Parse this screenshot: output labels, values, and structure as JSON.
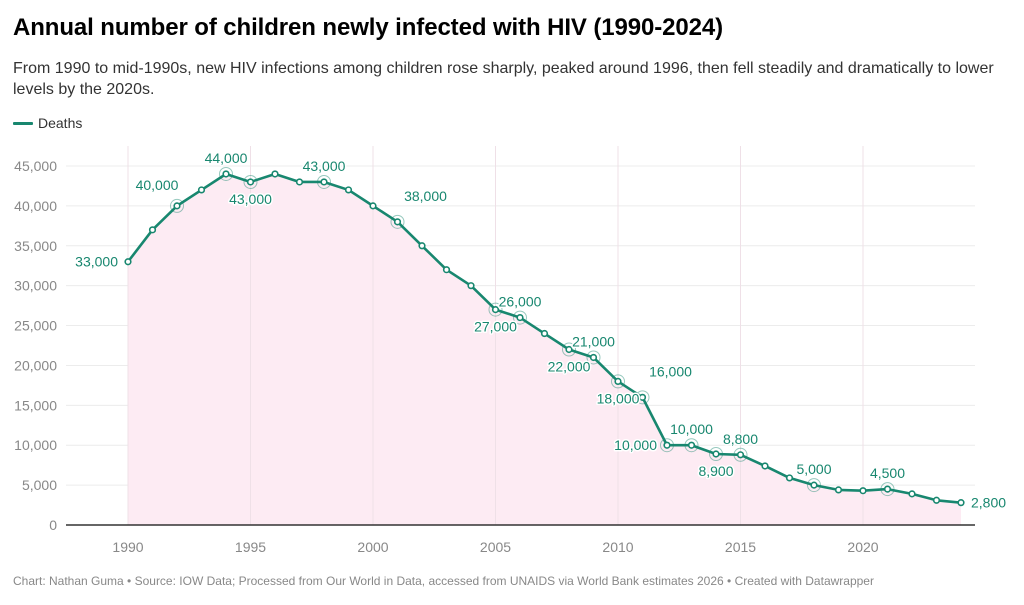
{
  "header": {
    "title": "Annual number of children newly infected with HIV (1990-2024)",
    "subtitle": "From 1990 to mid-1990s, new HIV infections among children rose sharply, peaked around 1996, then fell steadily and dramatically to lower levels by the 2020s."
  },
  "legend": {
    "label": "Deaths",
    "color": "#18876f"
  },
  "footer": {
    "text": "Chart: Nathan Guma  • Source: IOW Data; Processed from Our World in Data, accessed from UNAIDS via World Bank estimates 2026 • Created with Datawrapper"
  },
  "colors": {
    "line": "#18876f",
    "area": "#fdebf3",
    "grid": "#ececec",
    "axis": "#333333"
  },
  "chart_data": {
    "type": "area",
    "title": "Annual number of children newly infected with HIV (1990-2024)",
    "xlabel": "",
    "ylabel": "",
    "xlim": [
      1988,
      2025
    ],
    "ylim": [
      0,
      45000
    ],
    "grid": true,
    "legend_position": "top-left",
    "x_ticks": [
      1990,
      1995,
      2000,
      2005,
      2010,
      2015,
      2020
    ],
    "y_ticks": [
      0,
      5000,
      10000,
      15000,
      20000,
      25000,
      30000,
      35000,
      40000,
      45000
    ],
    "y_tick_labels": [
      "0",
      "5,000",
      "10,000",
      "15,000",
      "20,000",
      "25,000",
      "30,000",
      "35,000",
      "40,000",
      "45,000"
    ],
    "series": [
      {
        "name": "Deaths",
        "x": [
          1990,
          1991,
          1992,
          1993,
          1994,
          1995,
          1996,
          1997,
          1998,
          1999,
          2000,
          2001,
          2002,
          2003,
          2004,
          2005,
          2006,
          2007,
          2008,
          2009,
          2010,
          2011,
          2012,
          2013,
          2014,
          2015,
          2016,
          2017,
          2018,
          2019,
          2020,
          2021,
          2022,
          2023,
          2024
        ],
        "values": [
          33000,
          37000,
          40000,
          42000,
          44000,
          43000,
          44000,
          43000,
          43000,
          42000,
          40000,
          38000,
          35000,
          32000,
          30000,
          27000,
          26000,
          24000,
          22000,
          21000,
          18000,
          16000,
          10000,
          10000,
          8900,
          8800,
          7400,
          5900,
          5000,
          4400,
          4300,
          4500,
          3900,
          3100,
          2800
        ]
      }
    ],
    "annotations": [
      {
        "year": 1990,
        "label": "33,000",
        "pos": "left",
        "highlight": false
      },
      {
        "year": 1992,
        "label": "40,000",
        "pos": "above-left",
        "highlight": true
      },
      {
        "year": 1994,
        "label": "44,000",
        "pos": "above",
        "highlight": true
      },
      {
        "year": 1995,
        "label": "43,000",
        "pos": "below",
        "highlight": true
      },
      {
        "year": 1998,
        "label": "43,000",
        "pos": "above",
        "highlight": true
      },
      {
        "year": 2001,
        "label": "38,000",
        "pos": "above-right",
        "highlight": true
      },
      {
        "year": 2005,
        "label": "27,000",
        "pos": "below",
        "highlight": true
      },
      {
        "year": 2006,
        "label": "26,000",
        "pos": "above",
        "highlight": true
      },
      {
        "year": 2008,
        "label": "22,000",
        "pos": "below",
        "highlight": true
      },
      {
        "year": 2009,
        "label": "21,000",
        "pos": "above",
        "highlight": true
      },
      {
        "year": 2010,
        "label": "18,000",
        "pos": "below",
        "highlight": true
      },
      {
        "year": 2011,
        "label": "16,000",
        "pos": "above-right",
        "highlight": true
      },
      {
        "year": 2012,
        "label": "10,000",
        "pos": "left",
        "highlight": true
      },
      {
        "year": 2013,
        "label": "10,000",
        "pos": "above",
        "highlight": true
      },
      {
        "year": 2014,
        "label": "8,900",
        "pos": "below",
        "highlight": true
      },
      {
        "year": 2015,
        "label": "8,800",
        "pos": "above",
        "highlight": true
      },
      {
        "year": 2018,
        "label": "5,000",
        "pos": "above",
        "highlight": true
      },
      {
        "year": 2021,
        "label": "4,500",
        "pos": "above",
        "highlight": true
      },
      {
        "year": 2024,
        "label": "2,800",
        "pos": "right",
        "highlight": false
      }
    ]
  }
}
